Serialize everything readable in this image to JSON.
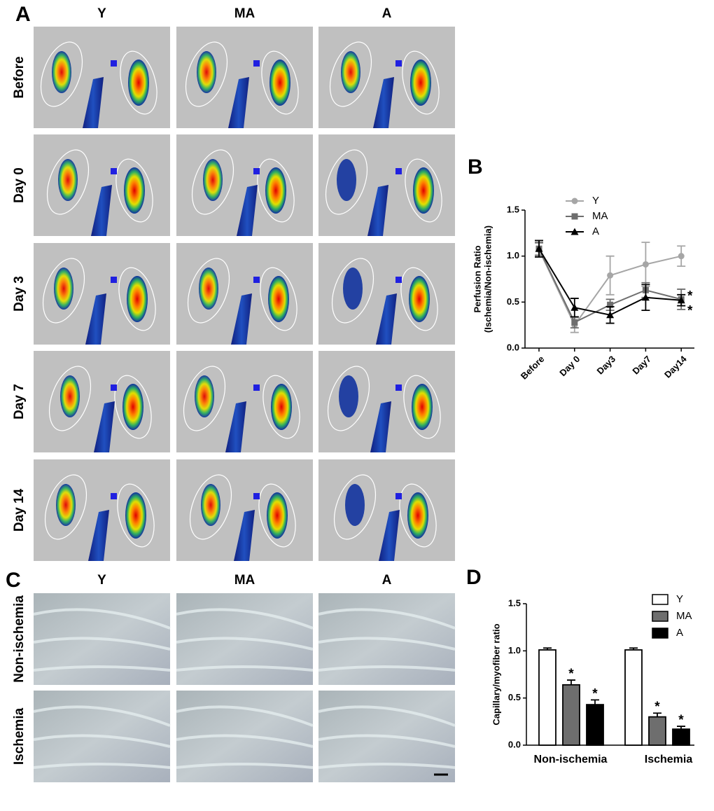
{
  "panels": {
    "letters": [
      "A",
      "B",
      "C",
      "D"
    ],
    "perfusion": {
      "columns": [
        "Y",
        "MA",
        "A"
      ],
      "rows": [
        "Before",
        "Day 0",
        "Day 3",
        "Day 7",
        "Day 14"
      ]
    },
    "histology": {
      "columns": [
        "Y",
        "MA",
        "A"
      ],
      "rows": [
        "Non-ischemia",
        "Ischemia"
      ]
    }
  },
  "chart_data": [
    {
      "type": "line",
      "ylabel": [
        "Perfusion Ratio",
        "(Ischemia/Non-ischemia)"
      ],
      "categories": [
        "Before",
        "Day 0",
        "Day3",
        "Day7",
        "Day14"
      ],
      "series": [
        {
          "name": "Y",
          "color": "#a6a6a6",
          "marker": "circle",
          "values": [
            1.07,
            0.25,
            0.79,
            0.91,
            1.0
          ],
          "errors": [
            0.07,
            0.08,
            0.21,
            0.24,
            0.11
          ]
        },
        {
          "name": "MA",
          "color": "#6e6e6e",
          "marker": "square",
          "values": [
            1.08,
            0.28,
            0.47,
            0.63,
            0.53
          ],
          "errors": [
            0.07,
            0.06,
            0.06,
            0.08,
            0.11
          ],
          "annotation": "*"
        },
        {
          "name": "A",
          "color": "#000000",
          "marker": "triangle",
          "values": [
            1.08,
            0.44,
            0.36,
            0.55,
            0.52
          ],
          "errors": [
            0.09,
            0.1,
            0.09,
            0.14,
            0.06
          ],
          "annotation": "*"
        }
      ],
      "ylim": [
        0,
        1.5
      ],
      "yticks": [
        {
          "value": 0,
          "label": "0.0"
        },
        0.5,
        {
          "value": 1,
          "label": "1.0"
        },
        1.5
      ]
    },
    {
      "type": "bar",
      "ylabel": [
        "Capillary/myofiber ratio"
      ],
      "categories": [
        "Non-ischemia",
        "Ischemia"
      ],
      "series": [
        {
          "name": "Y",
          "color": "#ffffff",
          "values": [
            1.01,
            1.01
          ],
          "errors": [
            0.02,
            0.02
          ]
        },
        {
          "name": "MA",
          "color": "#6e6e6e",
          "values": [
            0.64,
            0.3
          ],
          "errors": [
            0.05,
            0.04
          ],
          "annotations": [
            "*",
            "*"
          ]
        },
        {
          "name": "A",
          "color": "#000000",
          "values": [
            0.43,
            0.17
          ],
          "errors": [
            0.05,
            0.03
          ],
          "annotations": [
            "*",
            "*"
          ]
        }
      ],
      "ylim": [
        0,
        1.5
      ],
      "yticks": [
        {
          "value": 0,
          "label": "0.0"
        },
        0.5,
        {
          "value": 1,
          "label": "1.0"
        },
        1.5
      ]
    }
  ]
}
